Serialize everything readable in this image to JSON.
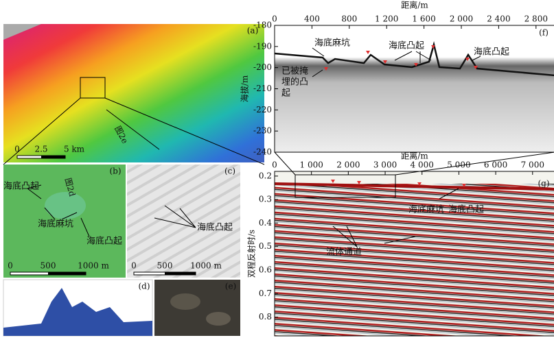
{
  "panel_a": {
    "label": "(a)",
    "annotation": "图2e",
    "scale": [
      "0",
      "2.5",
      "5 km"
    ]
  },
  "panel_b": {
    "label": "(b)",
    "annotation": "图2d",
    "notes": [
      "海底凸起",
      "海底麻坑",
      "海底凸起"
    ],
    "scale": [
      "0",
      "500",
      "1000 m"
    ]
  },
  "panel_c": {
    "label": "(c)",
    "notes": [
      "海底凸起"
    ],
    "scale": [
      "0",
      "500",
      "1000 m"
    ]
  },
  "panel_d": {
    "label": "(d)"
  },
  "panel_e": {
    "label": "(e)"
  },
  "panel_f": {
    "label": "(f)",
    "x_title": "距离/m",
    "y_title": "海拔/m",
    "xlim": [
      0,
      3000
    ],
    "xticks": [
      0,
      400,
      800,
      {
        "value": 1200,
        "label": "1 200"
      },
      {
        "value": 1600,
        "label": "1 600"
      },
      {
        "value": 2000,
        "label": "2 000"
      },
      {
        "value": 2400,
        "label": "2 400"
      },
      {
        "value": 2800,
        "label": "2 800"
      }
    ],
    "ylim": [
      -180,
      -240
    ],
    "yticks": [
      -180,
      -190,
      -200,
      -210,
      -220,
      -230,
      -240
    ],
    "notes": [
      "海底麻坑",
      "海底凸起",
      "海底凸起"
    ],
    "buried": [
      "已被掩",
      "埋的凸",
      "起"
    ]
  },
  "panel_g": {
    "label": "(g)",
    "x_title": "距离/m",
    "y_title": "双程反射时/s",
    "xlim": [
      0,
      7600
    ],
    "xticks": [
      0,
      {
        "value": 1000,
        "label": "1 000"
      },
      {
        "value": 2000,
        "label": "2 000"
      },
      {
        "value": 3000,
        "label": "3 000"
      },
      {
        "value": 4000,
        "label": "4 000"
      },
      {
        "value": 5000,
        "label": "5 000"
      },
      {
        "value": 6000,
        "label": "6 000"
      },
      {
        "value": 7000,
        "label": "7 000"
      }
    ],
    "ylim": [
      0.18,
      0.88
    ],
    "yticks": [
      0.2,
      0.3,
      0.4,
      0.5,
      0.6,
      0.7,
      0.8
    ],
    "notes": [
      "海底麻坑",
      "海底凸起",
      "流体通道"
    ]
  }
}
